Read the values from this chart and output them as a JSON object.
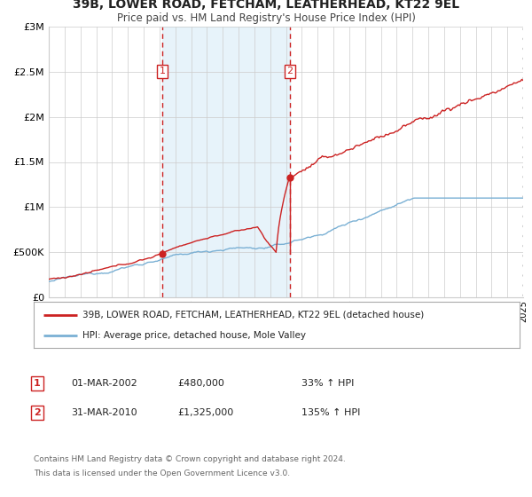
{
  "title": "39B, LOWER ROAD, FETCHAM, LEATHERHEAD, KT22 9EL",
  "subtitle": "Price paid vs. HM Land Registry's House Price Index (HPI)",
  "bg_color": "#ffffff",
  "plot_bg_color": "#ffffff",
  "hpi_color": "#7ab0d4",
  "price_color": "#cc2222",
  "marker1_date": 2002.17,
  "marker1_price": 480000,
  "marker1_label": "1",
  "marker1_date_str": "01-MAR-2002",
  "marker1_price_str": "£480,000",
  "marker1_pct": "33% ↑ HPI",
  "marker2_date": 2010.25,
  "marker2_price": 1325000,
  "marker2_label": "2",
  "marker2_date_str": "31-MAR-2010",
  "marker2_price_str": "£1,325,000",
  "marker2_pct": "135% ↑ HPI",
  "xmin": 1995,
  "xmax": 2025,
  "ymin": 0,
  "ymax": 3000000,
  "shade_color": "#ddeef8",
  "shade_alpha": 0.7,
  "legend_line1": "39B, LOWER ROAD, FETCHAM, LEATHERHEAD, KT22 9EL (detached house)",
  "legend_line2": "HPI: Average price, detached house, Mole Valley",
  "footer1": "Contains HM Land Registry data © Crown copyright and database right 2024.",
  "footer2": "This data is licensed under the Open Government Licence v3.0.",
  "grid_color": "#cccccc",
  "hatch_color": "#cccccc"
}
